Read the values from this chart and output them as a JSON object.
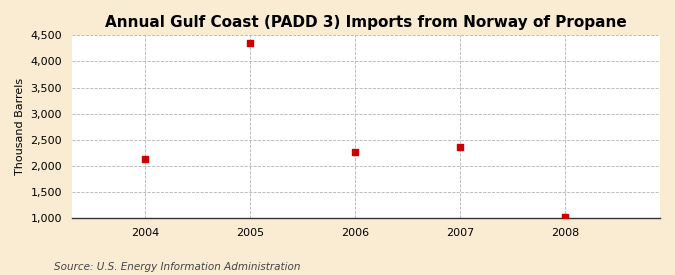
{
  "title": "Annual Gulf Coast (PADD 3) Imports from Norway of Propane",
  "ylabel": "Thousand Barrels",
  "source": "Source: U.S. Energy Information Administration",
  "years": [
    2004,
    2005,
    2006,
    2007,
    2008
  ],
  "values": [
    2138,
    4347,
    2261,
    2357,
    1028
  ],
  "xlim": [
    2003.3,
    2008.9
  ],
  "ylim": [
    1000,
    4500
  ],
  "yticks": [
    1000,
    1500,
    2000,
    2500,
    3000,
    3500,
    4000,
    4500
  ],
  "xticks": [
    2004,
    2005,
    2006,
    2007,
    2008
  ],
  "marker_color": "#cc0000",
  "marker": "s",
  "marker_size": 4,
  "bg_color": "#faecd2",
  "plot_bg_color": "#ffffff",
  "grid_color": "#aaaaaa",
  "title_fontsize": 11,
  "label_fontsize": 8,
  "tick_fontsize": 8,
  "source_fontsize": 7.5
}
